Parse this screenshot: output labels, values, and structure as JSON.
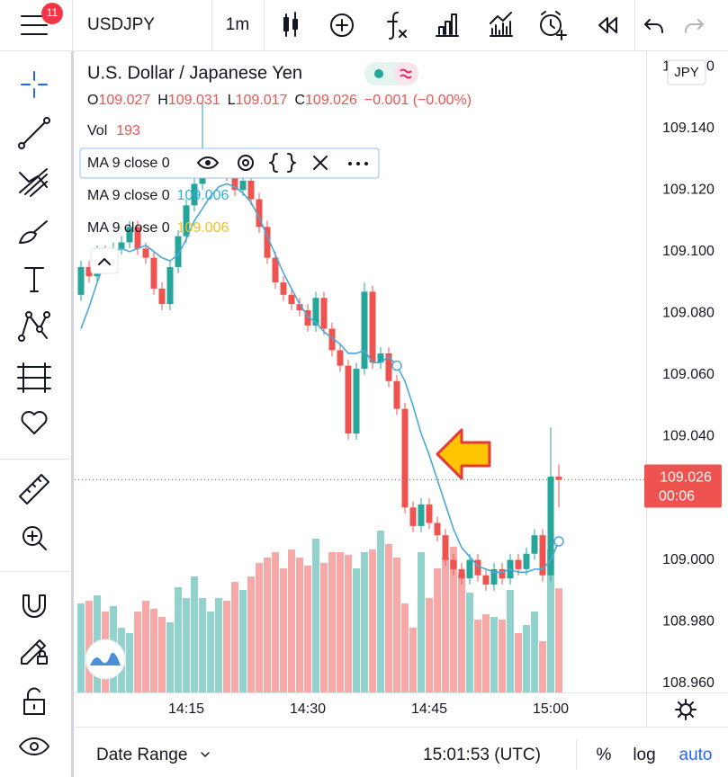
{
  "toolbar": {
    "badge": "11",
    "symbol": "USDJPY",
    "interval": "1m"
  },
  "legend": {
    "title": "U.S. Dollar / Japanese Yen",
    "ohlc_labels": [
      "O",
      "H",
      "L",
      "C"
    ],
    "change": "−0.001 (−0.00%)",
    "volume_label": "Vol"
  },
  "chart_data": {
    "type": "candlestick",
    "currency": "JPY",
    "categories": [
      null,
      null,
      null,
      null,
      null,
      null,
      null,
      null,
      null,
      null,
      null,
      null,
      null,
      "14:15",
      null,
      null,
      null,
      null,
      null,
      null,
      null,
      null,
      null,
      null,
      null,
      null,
      null,
      null,
      "14:30",
      null,
      null,
      null,
      null,
      null,
      null,
      null,
      null,
      null,
      null,
      null,
      null,
      null,
      null,
      "14:45",
      null,
      null,
      null,
      null,
      null,
      null,
      null,
      null,
      null,
      null,
      null,
      null,
      null,
      null,
      "15:00",
      null
    ],
    "open": [
      109.086,
      109.095,
      109.092,
      109.1,
      109.096,
      109.101,
      109.103,
      109.108,
      109.101,
      109.098,
      109.088,
      109.083,
      109.095,
      109.105,
      109.115,
      109.122,
      109.126,
      109.128,
      109.13,
      109.125,
      109.12,
      109.123,
      109.117,
      109.108,
      109.098,
      109.09,
      109.086,
      109.083,
      109.081,
      109.076,
      109.085,
      109.075,
      109.068,
      109.063,
      109.041,
      109.062,
      109.087,
      109.064,
      109.067,
      109.058,
      109.049,
      109.017,
      109.011,
      109.018,
      109.012,
      109.008,
      109,
      108.997,
      108.994,
      109,
      108.995,
      108.992,
      108.997,
      108.994,
      109,
      108.997,
      109.002,
      109.008,
      108.995,
      109.027
    ],
    "high": [
      109.097,
      109.097,
      109.102,
      109.102,
      109.103,
      109.105,
      109.11,
      109.11,
      109.103,
      109.1,
      109.09,
      109.097,
      109.107,
      109.117,
      109.124,
      109.148,
      109.13,
      109.132,
      109.132,
      109.127,
      109.125,
      109.125,
      109.119,
      109.11,
      109.1,
      109.092,
      109.088,
      109.085,
      109.083,
      109.087,
      109.087,
      109.077,
      109.07,
      109.065,
      109.064,
      109.09,
      109.089,
      109.069,
      109.069,
      109.06,
      109.051,
      109.019,
      109.02,
      109.02,
      109.014,
      109.01,
      109.002,
      108.999,
      109.002,
      109.002,
      108.997,
      108.999,
      108.999,
      109.002,
      109.002,
      109.004,
      109.01,
      109.01,
      109.043,
      109.031
    ],
    "low": [
      109.084,
      109.09,
      109.09,
      109.094,
      109.094,
      109.099,
      109.101,
      109.099,
      109.096,
      109.086,
      109.081,
      109.081,
      109.093,
      109.103,
      109.113,
      109.12,
      109.124,
      109.126,
      109.123,
      109.118,
      109.118,
      109.115,
      109.106,
      109.096,
      109.088,
      109.084,
      109.081,
      109.079,
      109.074,
      109.074,
      109.073,
      109.066,
      109.061,
      109.039,
      109.039,
      109.06,
      109.062,
      109.062,
      109.056,
      109.047,
      109.015,
      109.009,
      109.009,
      109.01,
      109.006,
      108.998,
      108.995,
      108.992,
      108.992,
      108.993,
      108.99,
      108.99,
      108.992,
      108.992,
      108.995,
      108.995,
      109,
      108.993,
      108.993,
      109.017
    ],
    "close": [
      109.095,
      109.092,
      109.1,
      109.096,
      109.101,
      109.103,
      109.108,
      109.101,
      109.098,
      109.088,
      109.083,
      109.095,
      109.105,
      109.115,
      109.122,
      109.126,
      109.128,
      109.13,
      109.125,
      109.12,
      109.123,
      109.117,
      109.108,
      109.098,
      109.09,
      109.086,
      109.083,
      109.081,
      109.076,
      109.085,
      109.075,
      109.068,
      109.063,
      109.041,
      109.062,
      109.087,
      109.064,
      109.067,
      109.058,
      109.049,
      109.017,
      109.011,
      109.018,
      109.012,
      109.008,
      109,
      108.997,
      108.994,
      109,
      108.995,
      108.992,
      108.997,
      108.994,
      109,
      108.997,
      109.002,
      109.008,
      108.995,
      109.027,
      109.026
    ],
    "volume": [
      165,
      170,
      180,
      150,
      160,
      120,
      110,
      150,
      170,
      155,
      140,
      130,
      195,
      175,
      215,
      175,
      150,
      175,
      170,
      205,
      190,
      215,
      240,
      250,
      260,
      230,
      265,
      250,
      235,
      285,
      240,
      260,
      260,
      255,
      230,
      260,
      265,
      300,
      275,
      250,
      165,
      120,
      260,
      175,
      230,
      250,
      270,
      220,
      185,
      135,
      145,
      140,
      135,
      190,
      110,
      125,
      150,
      95,
      265,
      193
    ],
    "series": [
      {
        "name": "MA 9 close 0",
        "color": "#4aa8d8",
        "values": [
          109.075,
          109.082,
          109.09,
          109.097,
          109.1,
          109.101,
          109.1,
          109.101,
          109.102,
          109.1,
          109.098,
          109.097,
          109.099,
          109.104,
          109.11,
          109.114,
          109.118,
          109.121,
          109.122,
          109.121,
          109.119,
          109.116,
          109.111,
          109.105,
          109.099,
          109.093,
          109.088,
          109.083,
          109.079,
          109.077,
          109.074,
          109.072,
          109.07,
          109.067,
          109.067,
          109.068,
          109.064,
          109.064,
          109.066,
          109.063,
          109.058,
          109.05,
          109.041,
          109.034,
          109.026,
          109.018,
          109.01,
          109.004,
          109.001,
          108.998,
          108.997,
          108.996,
          108.996,
          108.997,
          108.996,
          108.996,
          108.997,
          108.997,
          109,
          109.006
        ]
      }
    ],
    "ylim": [
      108.957,
      109.165
    ],
    "yticks": [
      {
        "value": 109.16,
        "label": "109.160"
      },
      {
        "value": 109.14,
        "label": "109.140"
      },
      {
        "value": 109.12,
        "label": "109.120"
      },
      {
        "value": 109.1,
        "label": "109.100"
      },
      {
        "value": 109.08,
        "label": "109.080"
      },
      {
        "value": 109.06,
        "label": "109.060"
      },
      {
        "value": 109.04,
        "label": "109.040"
      },
      {
        "value": 109,
        "label": "109.000"
      },
      {
        "value": 108.98,
        "label": "108.980"
      },
      {
        "value": 108.96,
        "label": "108.960"
      }
    ],
    "grid": false,
    "up_color": "#26a69a",
    "down_color": "#ef5350",
    "countdown": "00:06"
  },
  "bottom_bar": {
    "date_range": "Date Range",
    "time": "15:01:53 (UTC)",
    "percent": "%",
    "log": "log",
    "auto": "auto"
  }
}
